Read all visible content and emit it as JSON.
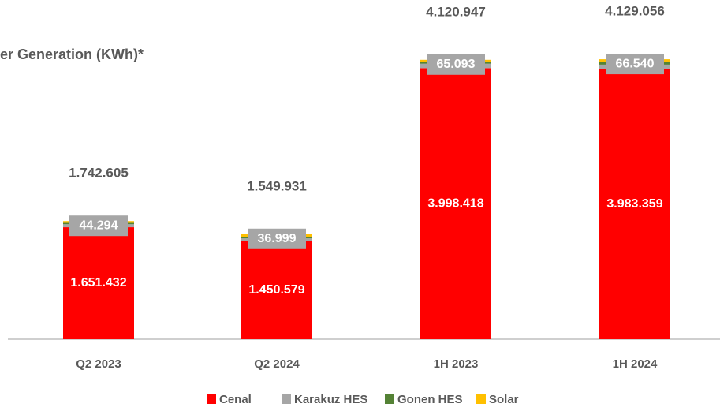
{
  "chart_data": {
    "type": "stacked_bar",
    "title": "er Generation (KWh)*",
    "categories": [
      "Q2 2023",
      "Q2 2024",
      "1H 2023",
      "1H 2024"
    ],
    "ylim": [
      0,
      4200000
    ],
    "series": [
      {
        "name": "Cenal",
        "color": "#ff0000",
        "values": [
          1651432,
          1450579,
          3998418,
          3983359
        ],
        "value_labels": [
          "1.651.432",
          "1.450.579",
          "3.998.418",
          "3.983.359"
        ]
      },
      {
        "name": "Karakuz HES",
        "color": "#a6a6a6",
        "values": [
          44294,
          36999,
          65093,
          66540
        ],
        "value_labels": [
          "44.294",
          "36.999",
          "65.093",
          "66.540"
        ]
      },
      {
        "name": "Gonen HES",
        "color": "#548235",
        "values": [
          20000,
          25000,
          25000,
          35000
        ]
      },
      {
        "name": "Solar",
        "color": "#ffc000",
        "values": [
          26879,
          37353,
          32436,
          44157
        ]
      }
    ],
    "totals": {
      "values": [
        1742605,
        1549931,
        4120947,
        4129056
      ],
      "value_labels": [
        "1.742.605",
        "1.549.931",
        "4.120.947",
        "4.129.056"
      ]
    }
  }
}
